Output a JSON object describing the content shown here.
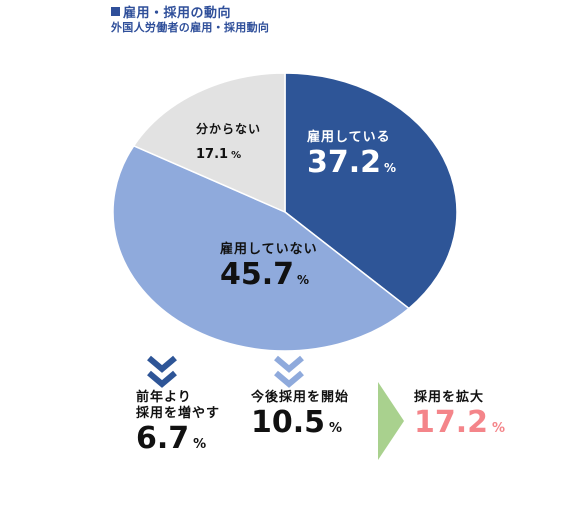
{
  "header": {
    "title": "雇用・採用の動向",
    "subtitle": "外国人労働者の雇用・採用動向"
  },
  "chart_data": {
    "type": "pie",
    "slices": [
      {
        "label": "雇用している",
        "value": 37.2,
        "unit": "%",
        "color": "#2e5597"
      },
      {
        "label": "雇用していない",
        "value": 45.7,
        "unit": "%",
        "color": "#8faadc"
      },
      {
        "label": "分からない",
        "value": 17.1,
        "unit": "%",
        "color": "#e2e2e2"
      }
    ]
  },
  "stats": [
    {
      "caption_line1": "前年より",
      "caption_line2": "採用を増やす",
      "value": "6.7",
      "unit": "%",
      "color": "#111111",
      "chevron_color": "#2e5597"
    },
    {
      "caption_line1": "",
      "caption_line2": "今後採用を開始",
      "value": "10.5",
      "unit": "%",
      "color": "#111111",
      "chevron_color": "#8faadc"
    },
    {
      "caption_line1": "",
      "caption_line2": "採用を拡大",
      "value": "17.2",
      "unit": "%",
      "color": "#f4858a",
      "arrow_color": "#a9d18e"
    }
  ]
}
